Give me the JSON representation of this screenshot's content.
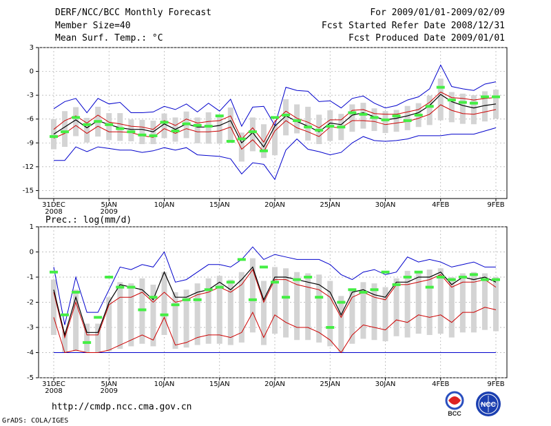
{
  "header": {
    "title": "DERF/NCC/BCC Monthly Forecast",
    "member_size": "Member Size=40",
    "variable1": "Mean Surf. Temp.: °C",
    "period": "For 2009/01/01-2009/02/09",
    "started": "Fcst Started Refer Date 2008/12/31",
    "produced": "Fcst Produced Date 2009/01/01"
  },
  "footer": {
    "url": "http://cmdp.ncc.cma.gov.cn",
    "grads": "GrADS: COLA/IGES",
    "logo_bcc": "BCC",
    "logo_ncc": "NCC"
  },
  "colors": {
    "max_min": "#0000cc",
    "spread": "#cc0000",
    "mean": "#000000",
    "obs": "#44ee44",
    "box": "#d4d4d4",
    "grid": "#aaaaaa"
  },
  "chart_data": [
    {
      "type": "line",
      "title": "Mean Surf. Temp.: °C",
      "x": [
        "2008-12-31",
        "2009-01-01",
        "2009-01-02",
        "2009-01-03",
        "2009-01-04",
        "2009-01-05",
        "2009-01-06",
        "2009-01-07",
        "2009-01-08",
        "2009-01-09",
        "2009-01-10",
        "2009-01-11",
        "2009-01-12",
        "2009-01-13",
        "2009-01-14",
        "2009-01-15",
        "2009-01-16",
        "2009-01-17",
        "2009-01-18",
        "2009-01-19",
        "2009-01-20",
        "2009-01-21",
        "2009-01-22",
        "2009-01-23",
        "2009-01-24",
        "2009-01-25",
        "2009-01-26",
        "2009-01-27",
        "2009-01-28",
        "2009-01-29",
        "2009-01-30",
        "2009-01-31",
        "2009-02-01",
        "2009-02-02",
        "2009-02-03",
        "2009-02-04",
        "2009-02-05",
        "2009-02-06",
        "2009-02-07",
        "2009-02-08",
        "2009-02-09"
      ],
      "xticks": [
        {
          "label": "31DEC",
          "sub": "2008",
          "index": 0
        },
        {
          "label": "5JAN",
          "sub": "2009",
          "index": 5
        },
        {
          "label": "10JAN",
          "sub": "",
          "index": 10
        },
        {
          "label": "15JAN",
          "sub": "",
          "index": 15
        },
        {
          "label": "20JAN",
          "sub": "",
          "index": 20
        },
        {
          "label": "25JAN",
          "sub": "",
          "index": 25
        },
        {
          "label": "30JAN",
          "sub": "",
          "index": 30
        },
        {
          "label": "4FEB",
          "sub": "",
          "index": 35
        },
        {
          "label": "9FEB",
          "sub": "",
          "index": 40
        }
      ],
      "ylim": [
        -16,
        3
      ],
      "yticks": [
        3,
        0,
        -3,
        -6,
        -9,
        -12,
        -15
      ],
      "series": [
        {
          "name": "max",
          "values": [
            -4.7,
            -3.8,
            -3.4,
            -5.2,
            -3.4,
            -4.1,
            -3.9,
            -5.2,
            -5.2,
            -5.1,
            -4.4,
            -4.8,
            -4.1,
            -5.1,
            -4.0,
            -5.0,
            -3.5,
            -6.9,
            -4.5,
            -4.4,
            -6.8,
            -2.0,
            -2.4,
            -2.5,
            -3.8,
            -3.7,
            -4.6,
            -3.4,
            -3.1,
            -4.0,
            -4.6,
            -4.3,
            -3.6,
            -3.2,
            -2.2,
            0.8,
            -1.9,
            -2.2,
            -2.4,
            -1.6,
            -1.3
          ]
        },
        {
          "name": "spread_upper",
          "values": [
            -7.3,
            -6.2,
            -5.6,
            -6.5,
            -5.5,
            -6.4,
            -6.6,
            -6.9,
            -7.0,
            -7.3,
            -6.2,
            -6.8,
            -6.0,
            -6.5,
            -6.3,
            -6.2,
            -5.6,
            -8.5,
            -7.1,
            -8.9,
            -6.3,
            -5.0,
            -5.9,
            -6.4,
            -7.1,
            -6.1,
            -6.1,
            -4.9,
            -4.8,
            -5.3,
            -5.4,
            -5.4,
            -5.1,
            -4.8,
            -3.9,
            -2.6,
            -3.3,
            -3.4,
            -3.6,
            -3.4,
            -3.3
          ]
        },
        {
          "name": "ensemble_mean",
          "values": [
            -7.9,
            -7.0,
            -6.1,
            -7.1,
            -6.2,
            -6.7,
            -7.1,
            -7.3,
            -7.3,
            -7.6,
            -6.6,
            -7.3,
            -6.6,
            -7.0,
            -7.0,
            -6.8,
            -6.2,
            -9.0,
            -7.7,
            -9.5,
            -6.9,
            -5.6,
            -6.3,
            -6.9,
            -7.6,
            -6.5,
            -6.7,
            -5.5,
            -5.2,
            -5.7,
            -6.1,
            -5.9,
            -5.6,
            -5.2,
            -4.3,
            -2.9,
            -3.8,
            -4.3,
            -4.6,
            -4.3,
            -4.1
          ]
        },
        {
          "name": "spread_lower",
          "values": [
            -8.4,
            -7.8,
            -6.8,
            -7.8,
            -6.9,
            -7.6,
            -7.6,
            -7.7,
            -8.1,
            -8.3,
            -7.2,
            -7.8,
            -7.2,
            -7.6,
            -7.6,
            -7.5,
            -7.0,
            -9.8,
            -8.6,
            -10.1,
            -7.5,
            -6.2,
            -7.1,
            -7.6,
            -8.2,
            -7.0,
            -7.1,
            -6.2,
            -6.2,
            -6.3,
            -6.7,
            -6.5,
            -6.3,
            -5.9,
            -5.4,
            -4.2,
            -4.9,
            -5.3,
            -5.4,
            -5.1,
            -4.8
          ]
        },
        {
          "name": "min",
          "values": [
            -11.2,
            -11.2,
            -9.5,
            -10.1,
            -9.5,
            -9.7,
            -9.9,
            -9.9,
            -10.2,
            -10.0,
            -9.6,
            -9.9,
            -9.6,
            -10.5,
            -10.6,
            -10.7,
            -11.0,
            -12.9,
            -11.5,
            -11.7,
            -13.6,
            -9.9,
            -8.5,
            -9.8,
            -10.1,
            -10.5,
            -10.2,
            -9.0,
            -8.2,
            -8.7,
            -8.8,
            -8.7,
            -8.5,
            -8.1,
            -8.1,
            -8.1,
            -7.9,
            -7.9,
            -7.9,
            -7.5,
            -7.1
          ]
        },
        {
          "name": "obs",
          "values": [
            -8.2,
            -7.6,
            -5.8,
            -6.7,
            -6.3,
            -6.7,
            -7.2,
            -7.6,
            -8.0,
            -8.1,
            -6.4,
            -7.5,
            -6.6,
            -6.8,
            -6.9,
            -5.6,
            -8.8,
            -8.5,
            -7.6,
            -10.0,
            -5.8,
            -5.5,
            -6.2,
            -7.0,
            -7.4,
            -6.9,
            -7.0,
            -5.2,
            -5.4,
            -5.8,
            -6.1,
            -5.6,
            -6.2,
            -5.5,
            -4.4,
            -2.0,
            -3.6,
            -3.9,
            -4.0,
            -3.2,
            -3.2
          ]
        }
      ]
    },
    {
      "type": "line",
      "title": "Prec.: log(mm/d)",
      "x": [
        "2008-12-31",
        "2009-01-01",
        "2009-01-02",
        "2009-01-03",
        "2009-01-04",
        "2009-01-05",
        "2009-01-06",
        "2009-01-07",
        "2009-01-08",
        "2009-01-09",
        "2009-01-10",
        "2009-01-11",
        "2009-01-12",
        "2009-01-13",
        "2009-01-14",
        "2009-01-15",
        "2009-01-16",
        "2009-01-17",
        "2009-01-18",
        "2009-01-19",
        "2009-01-20",
        "2009-01-21",
        "2009-01-22",
        "2009-01-23",
        "2009-01-24",
        "2009-01-25",
        "2009-01-26",
        "2009-01-27",
        "2009-01-28",
        "2009-01-29",
        "2009-01-30",
        "2009-01-31",
        "2009-02-01",
        "2009-02-02",
        "2009-02-03",
        "2009-02-04",
        "2009-02-05",
        "2009-02-06",
        "2009-02-07",
        "2009-02-08",
        "2009-02-09"
      ],
      "xticks": [
        {
          "label": "31DEC",
          "sub": "2008",
          "index": 0
        },
        {
          "label": "5JAN",
          "sub": "2009",
          "index": 5
        },
        {
          "label": "10JAN",
          "sub": "",
          "index": 10
        },
        {
          "label": "15JAN",
          "sub": "",
          "index": 15
        },
        {
          "label": "20JAN",
          "sub": "",
          "index": 20
        },
        {
          "label": "25JAN",
          "sub": "",
          "index": 25
        },
        {
          "label": "30JAN",
          "sub": "",
          "index": 30
        },
        {
          "label": "4FEB",
          "sub": "",
          "index": 35
        },
        {
          "label": "9FEB",
          "sub": "",
          "index": 40
        }
      ],
      "ylim": [
        -5,
        1
      ],
      "yticks": [
        1,
        0,
        -1,
        -2,
        -3,
        -4,
        -5
      ],
      "series": [
        {
          "name": "max",
          "values": [
            -0.6,
            -2.9,
            -1.0,
            -2.4,
            -2.4,
            -1.5,
            -0.6,
            -0.7,
            -0.5,
            -0.6,
            0.0,
            -1.2,
            -1.1,
            -0.8,
            -0.5,
            -0.5,
            -0.6,
            -0.3,
            0.2,
            -0.3,
            -0.1,
            -0.2,
            -0.3,
            -0.3,
            -0.3,
            -0.5,
            -0.9,
            -1.1,
            -0.8,
            -0.7,
            -0.9,
            -0.8,
            -0.2,
            -0.4,
            -0.3,
            -0.4,
            -0.6,
            -0.5,
            -0.4,
            -0.6,
            -0.6
          ]
        },
        {
          "name": "ensemble_mean",
          "values": [
            -1.5,
            -3.3,
            -1.8,
            -3.2,
            -3.2,
            -2.0,
            -1.3,
            -1.4,
            -1.5,
            -1.9,
            -0.8,
            -1.8,
            -1.8,
            -1.6,
            -1.5,
            -1.2,
            -1.5,
            -1.1,
            -0.6,
            -1.9,
            -1.0,
            -1.0,
            -1.1,
            -1.2,
            -1.3,
            -1.6,
            -2.5,
            -1.6,
            -1.5,
            -1.7,
            -1.8,
            -1.2,
            -1.2,
            -1.0,
            -1.0,
            -0.8,
            -1.3,
            -1.0,
            -1.1,
            -1.0,
            -1.2
          ]
        },
        {
          "name": "spread_upper",
          "values": [
            -1.6,
            -3.4,
            -2.0,
            -3.3,
            -3.3,
            -2.1,
            -1.8,
            -1.8,
            -1.6,
            -2.0,
            -1.6,
            -2.0,
            -1.9,
            -1.7,
            -1.6,
            -1.4,
            -1.6,
            -1.3,
            -0.7,
            -2.0,
            -1.1,
            -1.1,
            -1.3,
            -1.4,
            -1.5,
            -1.8,
            -2.6,
            -1.8,
            -1.6,
            -1.8,
            -1.9,
            -1.3,
            -1.3,
            -1.2,
            -1.1,
            -0.9,
            -1.4,
            -1.2,
            -1.2,
            -1.1,
            -1.4
          ]
        },
        {
          "name": "spread_lower",
          "values": [
            -2.6,
            -4.0,
            -3.9,
            -4.0,
            -4.0,
            -3.9,
            -3.7,
            -3.5,
            -3.3,
            -3.5,
            -2.6,
            -3.7,
            -3.6,
            -3.4,
            -3.3,
            -3.3,
            -3.4,
            -3.2,
            -2.4,
            -3.4,
            -2.5,
            -2.8,
            -3.0,
            -3.0,
            -3.2,
            -3.5,
            -4.0,
            -3.3,
            -2.9,
            -3.0,
            -3.1,
            -2.7,
            -2.8,
            -2.5,
            -2.6,
            -2.5,
            -2.8,
            -2.4,
            -2.4,
            -2.2,
            -2.3
          ]
        },
        {
          "name": "min",
          "values": [
            -4.0,
            -4.0,
            -4.0,
            -4.0,
            -4.0,
            -4.0,
            -4.0,
            -4.0,
            -4.0,
            -4.0,
            -4.0,
            -4.0,
            -4.0,
            -4.0,
            -4.0,
            -4.0,
            -4.0,
            -4.0,
            -4.0,
            -4.0,
            -4.0,
            -4.0,
            -4.0,
            -4.0,
            -4.0,
            -4.0,
            -4.0,
            -4.0,
            -4.0,
            -4.0,
            -4.0,
            -4.0,
            -4.0,
            -4.0,
            -4.0,
            -4.0,
            -4.0,
            -4.0,
            -4.0,
            -4.0,
            -4.0
          ]
        },
        {
          "name": "obs",
          "values": [
            -0.8,
            -2.5,
            -1.6,
            -3.6,
            -2.6,
            -1.0,
            -1.4,
            -1.4,
            -2.3,
            -1.8,
            -2.5,
            -2.1,
            -1.9,
            -1.9,
            -1.5,
            -1.4,
            -1.2,
            -0.3,
            -1.9,
            -0.6,
            -1.2,
            -1.8,
            -1.1,
            -1.0,
            -1.8,
            -3.0,
            -2.0,
            -1.5,
            -1.6,
            -1.5,
            -0.8,
            -1.3,
            -1.0,
            -0.8,
            -1.4,
            -1.0,
            -1.1,
            -1.0,
            -0.9,
            -1.1,
            -1.1
          ]
        }
      ]
    }
  ]
}
